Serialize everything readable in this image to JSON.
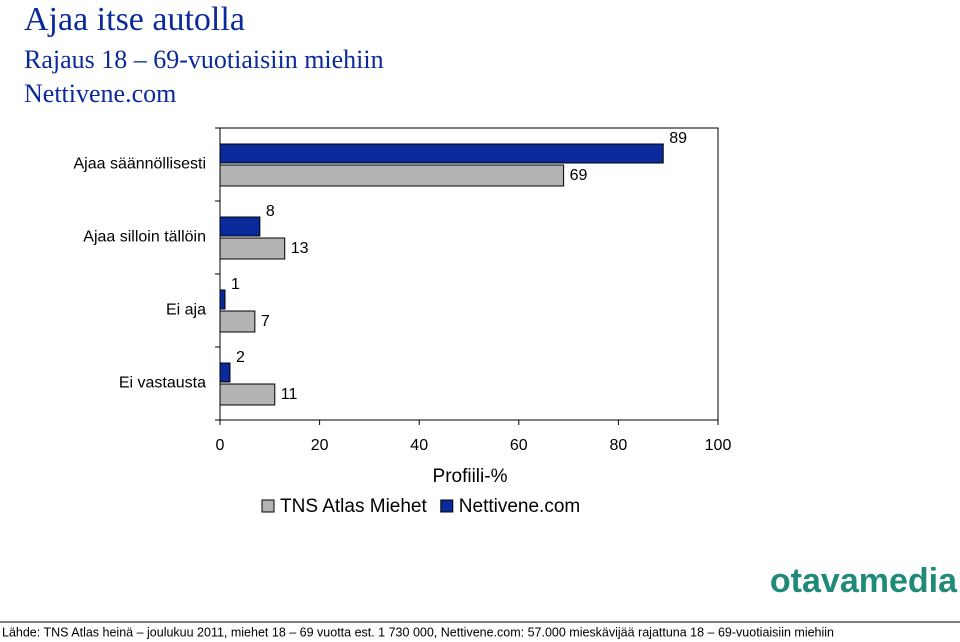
{
  "chart_data": {
    "type": "hbar",
    "title": "Ajaa itse autolla",
    "subtitle": "Rajaus 18 – 69-vuotiaisiin miehiin",
    "subtitle2": "Nettivene.com",
    "categories": [
      "Ajaa säännöllisesti",
      "Ajaa silloin tällöin",
      "Ei aja",
      "Ei vastausta"
    ],
    "series": [
      {
        "name": "TNS Atlas Miehet",
        "color": "#b4b4b4",
        "values": [
          69,
          13,
          7,
          11
        ]
      },
      {
        "name": "Nettivene.com",
        "color": "#0a2a9c",
        "values": [
          89,
          8,
          1,
          2
        ]
      }
    ],
    "xlim": [
      0,
      100
    ],
    "xticks": [
      0,
      20,
      40,
      60,
      80,
      100
    ],
    "xlabel": "Profiili-%",
    "legend": "bottom"
  },
  "logo": "otavamedia",
  "source": "Lähde: TNS Atlas heinä – joulukuu 2011, miehet 18 – 69 vuotta est. 1 730 000, Nettivene.com: 57.000 mieskävijää rajattuna 18 – 69-vuotiaisiin miehiin"
}
